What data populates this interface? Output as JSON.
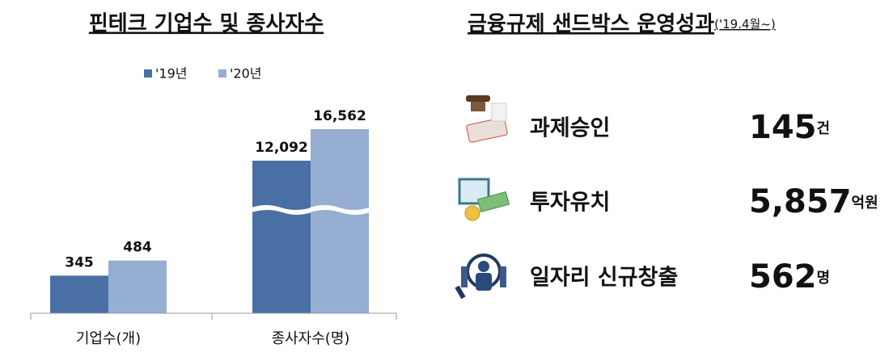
{
  "chart_data": {
    "type": "bar",
    "title": "핀테크 기업수 및 종사자수",
    "categories": [
      "기업수(개)",
      "종사자수(명)"
    ],
    "series": [
      {
        "name": "'19년",
        "color": "#4a6fa5",
        "values": [
          345,
          12092
        ],
        "value_labels": [
          "345",
          "12,092"
        ]
      },
      {
        "name": "'20년",
        "color": "#97aed3",
        "values": [
          484,
          16562
        ],
        "value_labels": [
          "484",
          "16,562"
        ]
      }
    ],
    "legend": "top"
  },
  "stats": {
    "title": "금융규제 샌드박스 운영성과",
    "subtitle": "('19.4월~)",
    "items": [
      {
        "label": "과제승인",
        "value": "145",
        "unit": "건"
      },
      {
        "label": "투자유치",
        "value": "5,857",
        "unit": "억원"
      },
      {
        "label": "일자리 신규창출",
        "value": "562",
        "unit": "명"
      }
    ]
  }
}
